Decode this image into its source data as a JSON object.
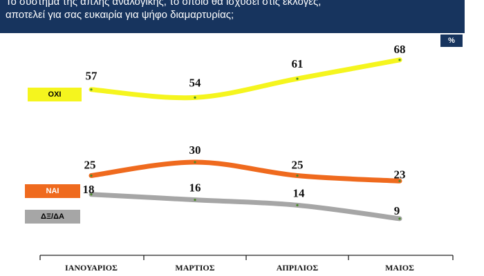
{
  "title": {
    "line1": "Το σύστημα της απλής αναλογικής, το οποίο θα ισχύσει στις εκλογές,",
    "line2": "αποτελεί για σας ευκαιρία για ψήφο διαμαρτυρίας;"
  },
  "unit": "%",
  "colors": {
    "header": "#17345e",
    "oxi": "#f5f51e",
    "nai": "#ef6a1e",
    "dk": "#a6a6a6"
  },
  "chart_data": {
    "type": "line",
    "categories": [
      "ΙΑΝΟΥΑΡΙΟΣ",
      "ΜΑΡΤΙΟΣ",
      "ΑΠΡΙΛΙΟΣ",
      "ΜΑΙΟΣ"
    ],
    "series": [
      {
        "name": "ΟΧΙ",
        "values": [
          57,
          54,
          61,
          68
        ]
      },
      {
        "name": "ΝΑΙ",
        "values": [
          25,
          30,
          25,
          23
        ]
      },
      {
        "name": "ΔΞ/ΔΑ",
        "values": [
          18,
          16,
          14,
          9
        ]
      }
    ],
    "ylabel": "%",
    "legend_placement": "left",
    "grid": false
  }
}
